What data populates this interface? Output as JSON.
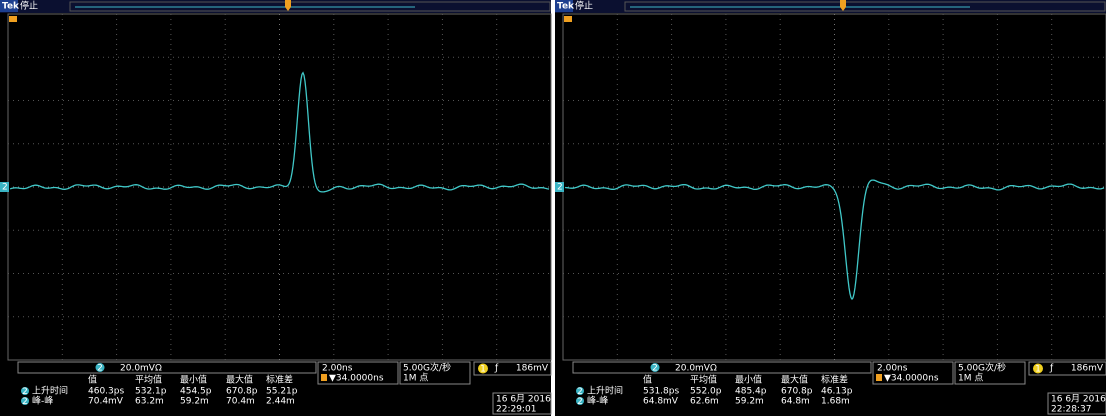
{
  "panels": [
    {
      "brand": "Tek",
      "status": "停止",
      "channel": "2",
      "vertical_scale": "20.0mVΩ",
      "timebase": "2.00ns",
      "trigger_position": "▼34.0000ns",
      "sample_rate": "5.00G次/秒",
      "record_length": "1M 点",
      "trigger_channel": "1",
      "trigger_slope": "ƒ",
      "trigger_level": "186mV",
      "measurements": {
        "headers": [
          "值",
          "平均值",
          "最小值",
          "最大值",
          "标准差"
        ],
        "rows": [
          {
            "channel": "2",
            "label": "上升时间",
            "values": [
              "460.3ps",
              "532.1p",
              "454.5p",
              "670.8p",
              "55.21p"
            ]
          },
          {
            "channel": "2",
            "label": "峰-峰",
            "values": [
              "70.4mV",
              "63.2m",
              "59.2m",
              "70.4m",
              "2.44m"
            ]
          }
        ]
      },
      "date": "16 6月 2016",
      "time": "22:29:01"
    },
    {
      "brand": "Tek",
      "status": "停止",
      "channel": "2",
      "vertical_scale": "20.0mVΩ",
      "timebase": "2.00ns",
      "trigger_position": "▼34.0000ns",
      "sample_rate": "5.00G次/秒",
      "record_length": "1M 点",
      "trigger_channel": "1",
      "trigger_slope": "ƒ",
      "trigger_level": "186mV",
      "measurements": {
        "headers": [
          "值",
          "平均值",
          "最小值",
          "最大值",
          "标准差"
        ],
        "rows": [
          {
            "channel": "2",
            "label": "上升时间",
            "values": [
              "531.8ps",
              "552.0p",
              "485.4p",
              "670.8p",
              "46.13p"
            ]
          },
          {
            "channel": "2",
            "label": "峰-峰",
            "values": [
              "64.8mV",
              "62.6m",
              "59.2m",
              "64.8m",
              "1.68m"
            ]
          }
        ]
      },
      "date": "16 6月 2016",
      "time": "22:28:37"
    }
  ]
}
